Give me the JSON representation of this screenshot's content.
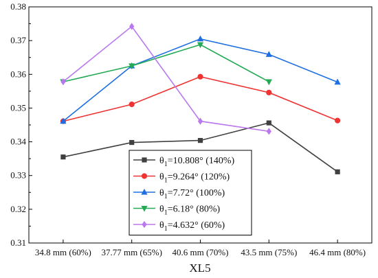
{
  "chart_data": {
    "type": "line",
    "title": "",
    "xlabel": "XL5",
    "ylabel": "",
    "categories": [
      "34.8 mm (60%)",
      "37.77 mm (65%)",
      "40.6 mm (70%)",
      "43.5 mm (75%)",
      "46.4 mm (80%)"
    ],
    "ylim": [
      0.31,
      0.38
    ],
    "yticks": [
      "0.31",
      "0.32",
      "0.33",
      "0.34",
      "0.35",
      "0.36",
      "0.37",
      "0.38"
    ],
    "grid": false,
    "legend_position": "bottom-center",
    "series": [
      {
        "name": "θ1=10.808° (140%)",
        "name_main": "θ",
        "name_sub": "1",
        "name_rest": "=10.808° (140%)",
        "color": "#404040",
        "marker": "square",
        "values": [
          0.3355,
          0.3398,
          0.3404,
          0.3456,
          0.3311
        ]
      },
      {
        "name": "θ1=9.264° (120%)",
        "name_main": "θ",
        "name_sub": "1",
        "name_rest": "=9.264° (120%)",
        "color": "#ee3333",
        "marker": "circle",
        "values": [
          0.3461,
          0.3511,
          0.3593,
          0.3546,
          0.3463
        ]
      },
      {
        "name": "θ1=7.72° (100%)",
        "name_main": "θ",
        "name_sub": "1",
        "name_rest": "=7.72° (100%)",
        "color": "#1f6fe0",
        "marker": "triangle-up",
        "values": [
          0.3461,
          0.3625,
          0.3705,
          0.3659,
          0.3577
        ]
      },
      {
        "name": "θ1=6.18° (80%)",
        "name_main": "θ",
        "name_sub": "1",
        "name_rest": "=6.18° (80%)",
        "color": "#22aa55",
        "marker": "triangle-down",
        "values": [
          0.3578,
          0.3625,
          0.3688,
          0.3578,
          null
        ]
      },
      {
        "name": "θ1=4.632° (60%)",
        "name_main": "θ",
        "name_sub": "1",
        "name_rest": "=4.632° (60%)",
        "color": "#bb77ee",
        "marker": "diamond",
        "values": [
          0.3578,
          0.3742,
          0.3461,
          0.3431,
          null
        ]
      }
    ]
  }
}
